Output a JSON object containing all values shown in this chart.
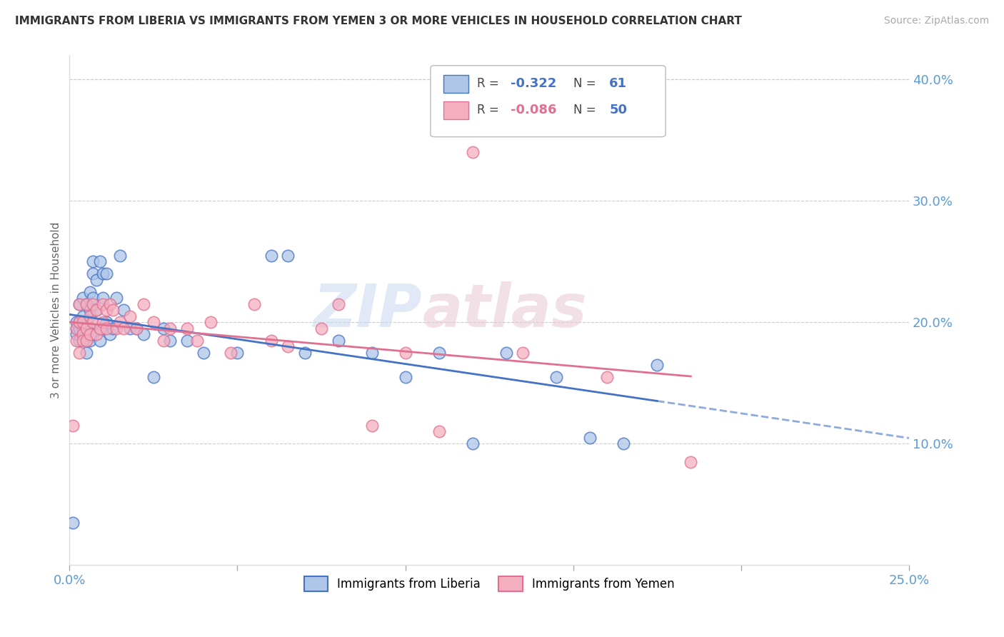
{
  "title": "IMMIGRANTS FROM LIBERIA VS IMMIGRANTS FROM YEMEN 3 OR MORE VEHICLES IN HOUSEHOLD CORRELATION CHART",
  "source": "Source: ZipAtlas.com",
  "ylabel": "3 or more Vehicles in Household",
  "xlim": [
    0.0,
    0.25
  ],
  "ylim": [
    0.0,
    0.42
  ],
  "liberia_R": "-0.322",
  "liberia_N": "61",
  "yemen_R": "-0.086",
  "yemen_N": "50",
  "liberia_color": "#aec6e8",
  "yemen_color": "#f4afc0",
  "liberia_line_color": "#4472c4",
  "yemen_line_color": "#e07090",
  "watermark_zip": "ZIP",
  "watermark_atlas": "atlas",
  "liberia_x": [
    0.001,
    0.002,
    0.002,
    0.002,
    0.003,
    0.003,
    0.003,
    0.003,
    0.004,
    0.004,
    0.004,
    0.004,
    0.005,
    0.005,
    0.005,
    0.005,
    0.005,
    0.006,
    0.006,
    0.006,
    0.006,
    0.007,
    0.007,
    0.007,
    0.007,
    0.008,
    0.008,
    0.009,
    0.009,
    0.01,
    0.01,
    0.01,
    0.011,
    0.011,
    0.012,
    0.013,
    0.014,
    0.015,
    0.016,
    0.018,
    0.02,
    0.022,
    0.025,
    0.028,
    0.03,
    0.035,
    0.04,
    0.05,
    0.06,
    0.065,
    0.07,
    0.08,
    0.09,
    0.1,
    0.11,
    0.12,
    0.13,
    0.145,
    0.155,
    0.165,
    0.175
  ],
  "liberia_y": [
    0.035,
    0.195,
    0.19,
    0.2,
    0.195,
    0.185,
    0.2,
    0.215,
    0.195,
    0.205,
    0.22,
    0.19,
    0.215,
    0.2,
    0.195,
    0.185,
    0.175,
    0.21,
    0.195,
    0.225,
    0.185,
    0.25,
    0.24,
    0.22,
    0.19,
    0.235,
    0.21,
    0.25,
    0.185,
    0.24,
    0.22,
    0.195,
    0.24,
    0.2,
    0.19,
    0.195,
    0.22,
    0.255,
    0.21,
    0.195,
    0.195,
    0.19,
    0.155,
    0.195,
    0.185,
    0.185,
    0.175,
    0.175,
    0.255,
    0.255,
    0.175,
    0.185,
    0.175,
    0.155,
    0.175,
    0.1,
    0.175,
    0.155,
    0.105,
    0.1,
    0.165
  ],
  "yemen_x": [
    0.001,
    0.002,
    0.002,
    0.003,
    0.003,
    0.003,
    0.004,
    0.004,
    0.004,
    0.005,
    0.005,
    0.005,
    0.006,
    0.006,
    0.007,
    0.007,
    0.008,
    0.008,
    0.009,
    0.01,
    0.01,
    0.011,
    0.011,
    0.012,
    0.013,
    0.014,
    0.015,
    0.016,
    0.018,
    0.02,
    0.022,
    0.025,
    0.028,
    0.03,
    0.035,
    0.038,
    0.042,
    0.048,
    0.055,
    0.06,
    0.065,
    0.075,
    0.08,
    0.09,
    0.1,
    0.11,
    0.12,
    0.135,
    0.16,
    0.185
  ],
  "yemen_y": [
    0.115,
    0.195,
    0.185,
    0.215,
    0.2,
    0.175,
    0.2,
    0.19,
    0.185,
    0.215,
    0.195,
    0.185,
    0.205,
    0.19,
    0.215,
    0.2,
    0.21,
    0.19,
    0.195,
    0.215,
    0.2,
    0.21,
    0.195,
    0.215,
    0.21,
    0.195,
    0.2,
    0.195,
    0.205,
    0.195,
    0.215,
    0.2,
    0.185,
    0.195,
    0.195,
    0.185,
    0.2,
    0.175,
    0.215,
    0.185,
    0.18,
    0.195,
    0.215,
    0.115,
    0.175,
    0.11,
    0.34,
    0.175,
    0.155,
    0.085
  ]
}
